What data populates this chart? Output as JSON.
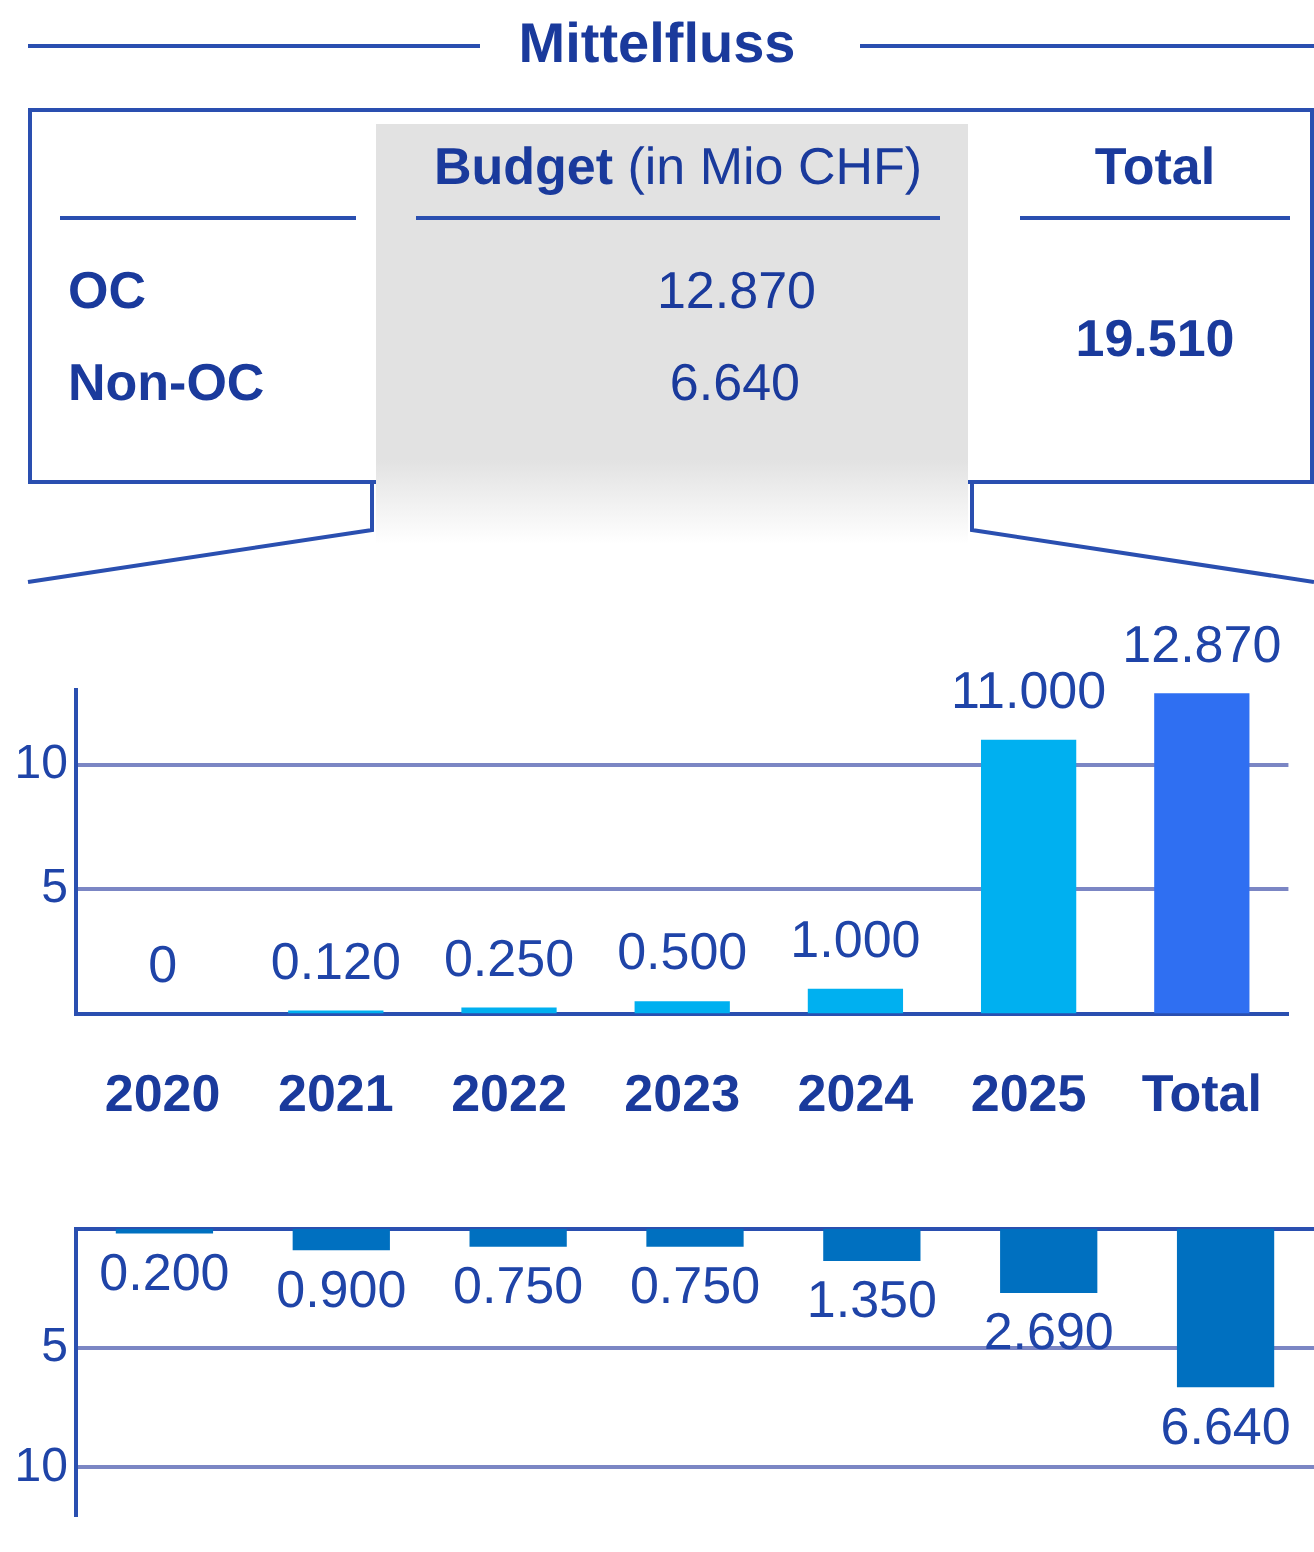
{
  "chart_data": [
    {
      "type": "other",
      "title": "Mittelfluss",
      "annotations": [
        "Budget (in Mio CHF)",
        "Total",
        "OC",
        "12.870",
        "Non-OC",
        "6.640",
        "19.510"
      ]
    },
    {
      "type": "bar",
      "categories": [
        "2020",
        "2021",
        "2022",
        "2023",
        "2024",
        "2025",
        "Total"
      ],
      "series": [
        {
          "colors": [
            "#00b0f0",
            "#00b0f0",
            "#00b0f0",
            "#00b0f0",
            "#00b0f0",
            "#00b0f0",
            "#2f6ff2"
          ],
          "values": [
            0,
            0.12,
            0.25,
            0.5,
            1,
            11,
            12.87
          ],
          "value_labels": [
            "0",
            "0.120",
            "0.250",
            "0.500",
            "1.000",
            "11.000",
            "12.870"
          ]
        }
      ],
      "ylim": [
        0,
        13
      ],
      "yticks": [
        {
          "value": 5,
          "label": "5"
        },
        {
          "value": 10,
          "label": "10"
        }
      ],
      "grid": "y",
      "legend": false
    },
    {
      "type": "bar",
      "categories": [
        null,
        null,
        null,
        null,
        null,
        null,
        null
      ],
      "series": [
        {
          "color": "#0070c0",
          "values": [
            0.2,
            0.9,
            0.75,
            0.75,
            1.35,
            2.69,
            6.64
          ],
          "value_labels": [
            "0.200",
            "0.900",
            "0.750",
            "0.750",
            "1.350",
            "2.690",
            "6.640"
          ]
        }
      ],
      "ylim": [
        12,
        0
      ],
      "yticks": [
        5,
        10
      ],
      "grid": "y",
      "legend": false,
      "tick_labels": "y"
    }
  ]
}
